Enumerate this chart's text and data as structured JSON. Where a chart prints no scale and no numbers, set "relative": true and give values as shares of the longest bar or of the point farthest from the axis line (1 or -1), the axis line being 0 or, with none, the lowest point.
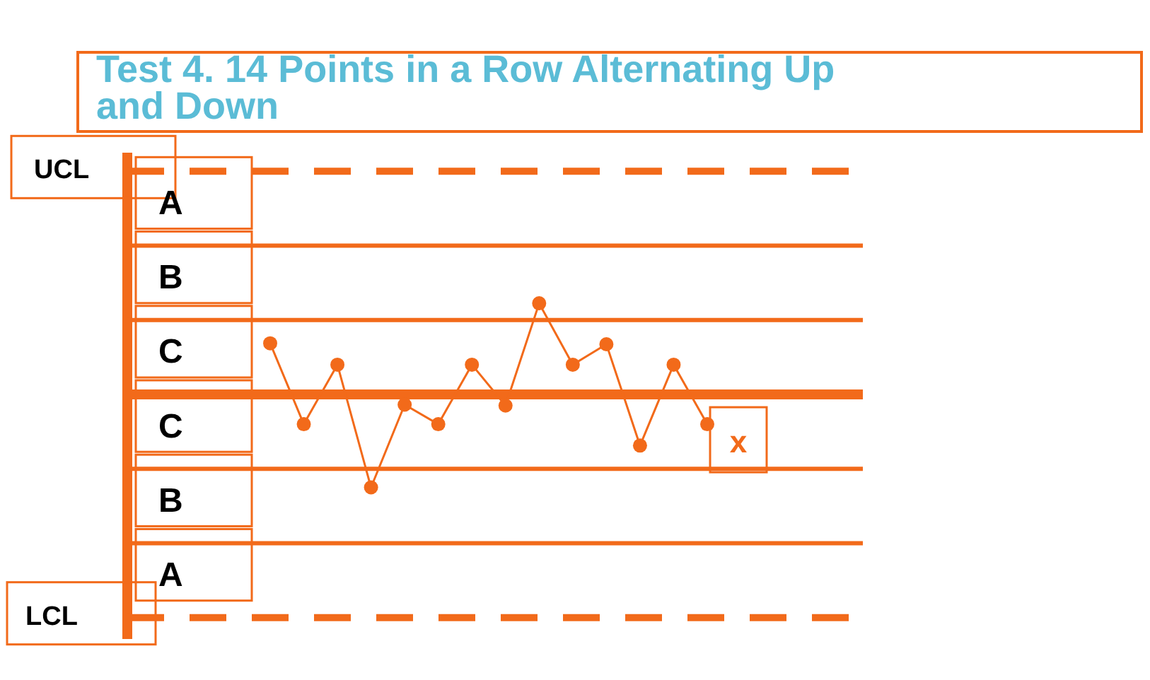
{
  "chart_data": {
    "type": "line",
    "title": "Test 4. 14 Points in a Row Alternating Up and Down",
    "relative": true,
    "categories": [
      null,
      null,
      null,
      null,
      null,
      null,
      null,
      null,
      null,
      null,
      null,
      null,
      null,
      null
    ],
    "series": [
      {
        "color": "#f26a1a",
        "values": [
          0.55,
          -0.32,
          0.32,
          -1,
          -0.11,
          -0.32,
          0.32,
          -0.12,
          0.98,
          0.32,
          0.54,
          -0.55,
          0.32,
          -0.32
        ]
      }
    ],
    "marker": "circle",
    "line_style": "solid",
    "ref_lines": [
      {
        "axis": "y",
        "value": 2.4,
        "label": "UCL",
        "line_style": "dashed",
        "color": "#f26a1a"
      },
      {
        "axis": "y",
        "value": 1.6,
        "color": "#f26a1a"
      },
      {
        "axis": "y",
        "value": 0.8,
        "color": "#f26a1a"
      },
      {
        "axis": "y",
        "value": 0,
        "color": "#f26a1a"
      },
      {
        "axis": "y",
        "value": -0.8,
        "color": "#f26a1a"
      },
      {
        "axis": "y",
        "value": -1.6,
        "color": "#f26a1a"
      },
      {
        "axis": "y",
        "value": -2.4,
        "label": "LCL",
        "line_style": "dashed",
        "color": "#f26a1a"
      }
    ],
    "annotations": [
      "A",
      "B",
      "C",
      "C",
      "B",
      "A",
      "x"
    ]
  }
}
